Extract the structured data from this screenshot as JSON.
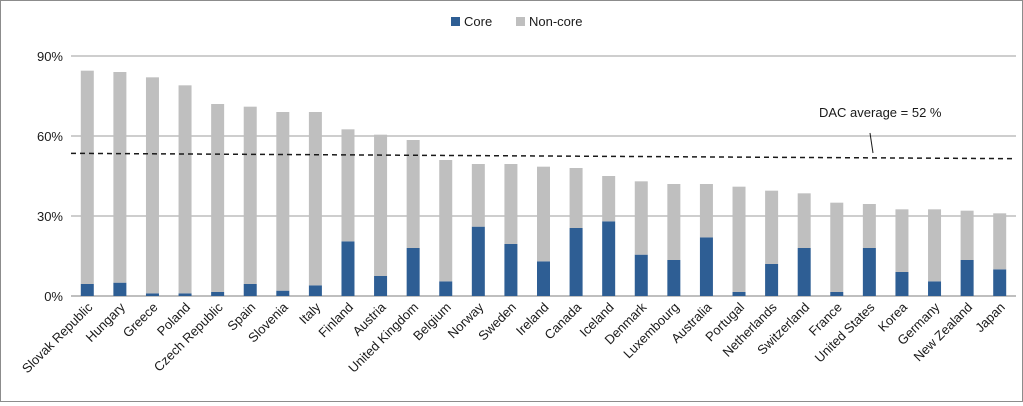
{
  "chart_data": {
    "type": "bar",
    "stacked": true,
    "title": "",
    "xlabel": "",
    "ylabel": "",
    "ylim": [
      0,
      90
    ],
    "y_ticks": [
      "0%",
      "30%",
      "60%",
      "90%"
    ],
    "y_tick_values": [
      0,
      30,
      60,
      90
    ],
    "grid": "horizontal",
    "legend_position": "top",
    "categories": [
      "Slovak Republic",
      "Hungary",
      "Greece",
      "Poland",
      "Czech Republic",
      "Spain",
      "Slovenia",
      "Italy",
      "Finland",
      "Austria",
      "United Kingdom",
      "Belgium",
      "Norway",
      "Sweden",
      "Ireland",
      "Canada",
      "Iceland",
      "Denmark",
      "Luxembourg",
      "Australia",
      "Portugal",
      "Netherlands",
      "Switzerland",
      "France",
      "United States",
      "Korea",
      "Germany",
      "New Zealand",
      "Japan"
    ],
    "series": [
      {
        "name": "Core",
        "color": "#2e5e94",
        "values": [
          4.5,
          5,
          1,
          1,
          1.5,
          4.5,
          2,
          4,
          20.5,
          7.5,
          18,
          5.5,
          26,
          19.5,
          13,
          25.5,
          28,
          15.5,
          13.5,
          22,
          1.5,
          12,
          18,
          1.5,
          18,
          9,
          5.5,
          13.5,
          10
        ]
      },
      {
        "name": "Non-core",
        "color": "#bfbfbf",
        "values": [
          80,
          79,
          81,
          78,
          70.5,
          66.5,
          67,
          65,
          42,
          53,
          40.5,
          45.5,
          23.5,
          30,
          35.5,
          22.5,
          17,
          27.5,
          28.5,
          20,
          39.5,
          27.5,
          20.5,
          33.5,
          16.5,
          23.5,
          27,
          18.5,
          21
        ]
      }
    ],
    "reference_line": {
      "label": "DAC average = 52 %",
      "value_start": 53.5,
      "value_end": 51.5,
      "style": "dashed"
    }
  }
}
